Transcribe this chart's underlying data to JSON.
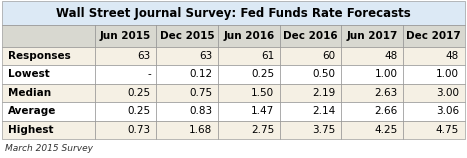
{
  "title": "Wall Street Journal Survey: Fed Funds Rate Forecasts",
  "columns": [
    "",
    "Jun 2015",
    "Dec 2015",
    "Jun 2016",
    "Dec 2016",
    "Jun 2017",
    "Dec 2017"
  ],
  "rows": [
    [
      "Responses",
      "63",
      "63",
      "61",
      "60",
      "48",
      "48"
    ],
    [
      "Lowest",
      "-",
      "0.12",
      "0.25",
      "0.50",
      "1.00",
      "1.00"
    ],
    [
      "Median",
      "0.25",
      "0.75",
      "1.50",
      "2.19",
      "2.63",
      "3.00"
    ],
    [
      "Average",
      "0.25",
      "0.83",
      "1.47",
      "2.14",
      "2.66",
      "3.06"
    ],
    [
      "Highest",
      "0.73",
      "1.68",
      "2.75",
      "3.75",
      "4.25",
      "4.75"
    ]
  ],
  "footnote": "March 2015 Survey",
  "title_bg": "#dce9f5",
  "header_bg": "#d8d8d0",
  "row_bg_odd": "#f5f0e4",
  "row_bg_even": "#ffffff",
  "border_color": "#888888",
  "title_fontsize": 8.5,
  "header_fontsize": 7.5,
  "cell_fontsize": 7.5,
  "footnote_fontsize": 6.5,
  "col_widths_rel": [
    1.5,
    1.0,
    1.0,
    1.0,
    1.0,
    1.0,
    1.0
  ]
}
